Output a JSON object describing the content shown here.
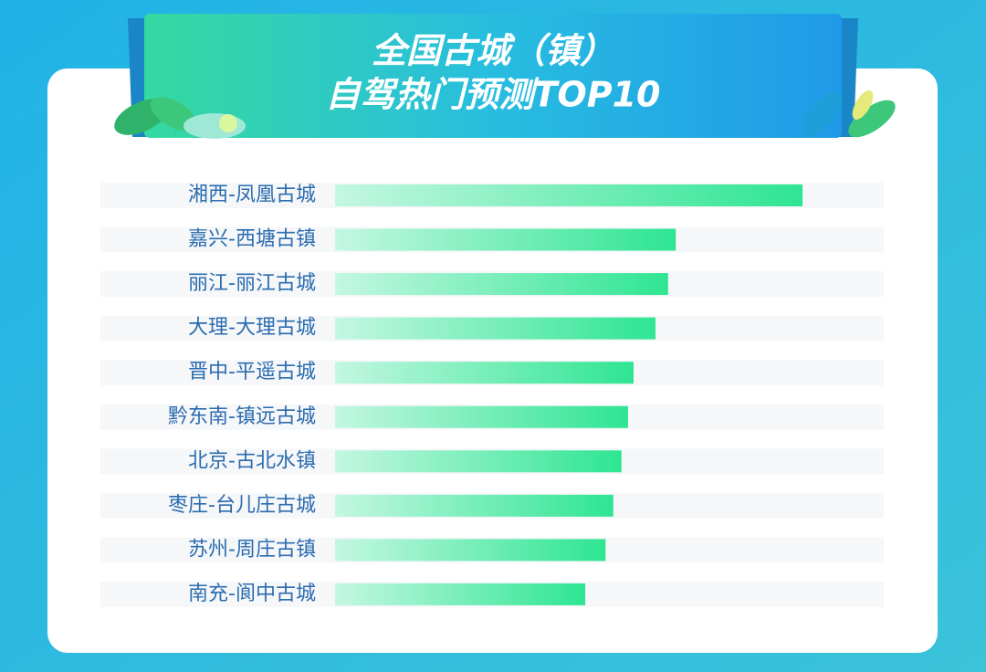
{
  "chart_data": {
    "type": "hbar",
    "title_lines": [
      "全国古城（镇）",
      "自驾热门预测TOP10"
    ],
    "categories": [
      "湘西-凤凰古城",
      "嘉兴-西塘古镇",
      "丽江-丽江古城",
      "大理-大理古城",
      "晋中-平遥古城",
      "黔东南-镇远古城",
      "北京-古北水镇",
      "枣庄-台儿庄古城",
      "苏州-周庄古镇",
      "南充-阆中古城"
    ],
    "values": [
      85.2,
      62.1,
      60.7,
      58.4,
      54.4,
      53.4,
      52.2,
      50.7,
      49.3,
      45.6
    ],
    "xlim": [
      0,
      100
    ],
    "color": "#2ee592"
  }
}
